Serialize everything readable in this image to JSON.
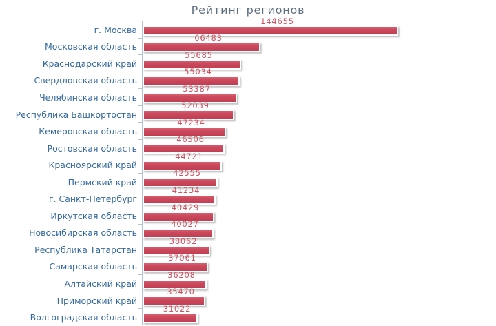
{
  "chart_data": {
    "type": "bar",
    "orientation": "horizontal",
    "title": "Рейтинг регионов",
    "categories": [
      "г. Москва",
      "Московская область",
      "Краснодарский край",
      "Свердловская область",
      "Челябинская область",
      "Республика Башкортостан",
      "Кемеровская область",
      "Ростовская область",
      "Красноярский край",
      "Пермский край",
      "г. Санкт-Петербург",
      "Иркутская область",
      "Новосибирская область",
      "Республика Татарстан",
      "Самарская область",
      "Алтайский край",
      "Приморский край",
      "Волгоградская область"
    ],
    "values": [
      144655,
      66483,
      55685,
      55034,
      53387,
      52039,
      47234,
      46506,
      44721,
      42555,
      41234,
      40429,
      40027,
      38062,
      37061,
      36208,
      35470,
      31022
    ],
    "value_labels_shown": true,
    "xlim": [
      0,
      144655
    ],
    "grid": false,
    "legend": false,
    "x_axis_labels_shown": false
  },
  "colors": {
    "background": "#ffffff",
    "title": "#5d6f80",
    "category_label": "#366a9e",
    "value_label": "#cd5362",
    "bar_fill_top": "#d96070",
    "bar_fill": "#cb4a5d",
    "bar_fill_bottom": "#c23f53",
    "axis": "#b3c3d6"
  }
}
